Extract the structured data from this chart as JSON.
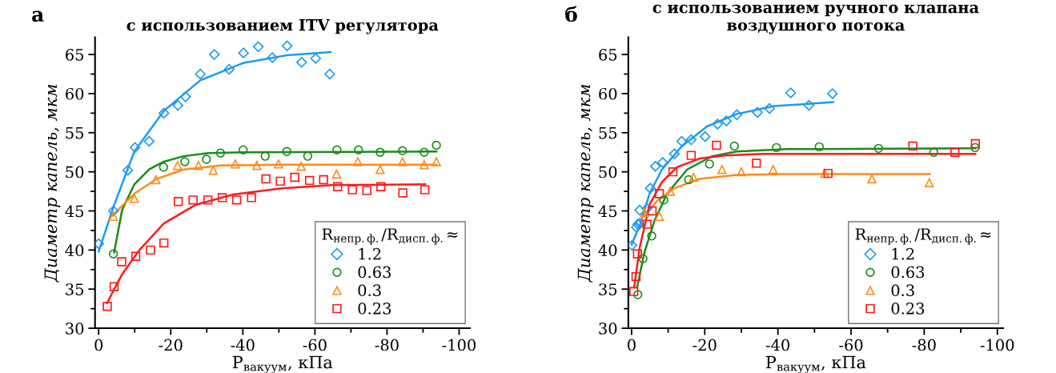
{
  "chart_data": [
    {
      "type": "scatter",
      "title": "с использованием ITV регулятора",
      "xlabel": "P$_{вакуум}$, кПа",
      "ylabel": "Диаметр капель, мкм",
      "legend_title": "R$_{непр.ф.}$/R$_{дисп.ф.}$≈",
      "annotations": [
        "а"
      ],
      "legend": "bottom right",
      "grid": false,
      "xlim": [
        1,
        -103
      ],
      "xticks": [
        0,
        {
          "value": -10,
          "label": null
        },
        -20,
        {
          "value": -30,
          "label": null
        },
        -40,
        {
          "value": -50,
          "label": null
        },
        -60,
        {
          "value": -70,
          "label": null
        },
        -80,
        {
          "value": -90,
          "label": null
        },
        -100
      ],
      "ylim": [
        30,
        67.2
      ],
      "yticks": [
        30,
        {
          "value": 32.5,
          "label": null
        },
        35,
        {
          "value": 37.5,
          "label": null
        },
        40,
        {
          "value": 42.5,
          "label": null
        },
        45,
        {
          "value": 47.5,
          "label": null
        },
        50,
        {
          "value": 52.5,
          "label": null
        },
        55,
        {
          "value": 57.5,
          "label": null
        },
        60,
        {
          "value": 62.5,
          "label": null
        },
        65
      ],
      "series": [
        {
          "name": "1.2",
          "marker": "diamond",
          "color": "#1e9bf0",
          "x": [
            0,
            -4.1,
            -8.1,
            -10.1,
            -14.0,
            -18.1,
            -22.0,
            -24.1,
            -28.2,
            -32.1,
            -36.2,
            -40.2,
            -44.3,
            -48.2,
            -52.3,
            -56.3,
            -60.2,
            -64.1
          ],
          "values": [
            40.8,
            45.0,
            50.2,
            53.1,
            53.9,
            57.5,
            58.5,
            59.6,
            62.5,
            65.0,
            63.1,
            65.2,
            66.0,
            64.6,
            66.1,
            64.0,
            64.5,
            62.5
          ]
        },
        {
          "name": "0.63",
          "marker": "circle",
          "color": "#1a8c1a",
          "x": [
            -4.1,
            -18.0,
            -23.9,
            -29.9,
            -33.8,
            -40.1,
            -46.2,
            -52.2,
            -58.0,
            -66.1,
            -72.1,
            -78.1,
            -84.3,
            -90.3,
            -93.7
          ],
          "values": [
            39.5,
            50.6,
            51.3,
            51.6,
            52.4,
            52.8,
            52.0,
            52.6,
            52.0,
            52.8,
            52.8,
            52.5,
            52.7,
            52.5,
            53.4
          ]
        },
        {
          "name": "0.3",
          "marker": "triangle",
          "color": "#ff8c1a",
          "x": [
            -4.1,
            -9.9,
            -15.9,
            -21.9,
            -27.7,
            -31.8,
            -37.9,
            -43.9,
            -49.9,
            -56.2,
            -66.0,
            -71.9,
            -78.1,
            -84.3,
            -90.3,
            -93.7
          ],
          "values": [
            44.3,
            46.6,
            49.0,
            50.8,
            50.8,
            50.2,
            51.0,
            50.8,
            51.0,
            50.7,
            49.7,
            51.3,
            50.3,
            51.3,
            50.9,
            51.3
          ]
        },
        {
          "name": "0.23",
          "marker": "square",
          "color": "#ff1a1a",
          "x": [
            -2.4,
            -4.3,
            -6.4,
            -10.3,
            -14.4,
            -18.1,
            -22.1,
            -26.2,
            -30.3,
            -34.3,
            -38.3,
            -42.4,
            -46.4,
            -50.4,
            -54.4,
            -58.5,
            -62.4,
            -66.3,
            -70.4,
            -74.4,
            -78.3,
            -84.4,
            -90.5
          ],
          "values": [
            32.8,
            35.3,
            38.5,
            39.2,
            40.0,
            40.9,
            46.2,
            46.4,
            46.4,
            46.7,
            46.4,
            46.7,
            49.1,
            48.8,
            49.3,
            48.9,
            49.0,
            48.1,
            47.7,
            47.6,
            48.1,
            47.3,
            47.7
          ]
        },
        {
          "type": "line",
          "color": "#1e9bf0",
          "x": [
            0,
            -4.1,
            -9.9,
            -18.1,
            -28.2,
            -40,
            -52.3,
            -64.3
          ],
          "values": [
            39.8,
            45.5,
            52.6,
            57.8,
            61.7,
            63.9,
            64.9,
            65.3
          ]
        },
        {
          "type": "line",
          "color": "#1a8c1a",
          "x": [
            -4.3,
            -6.5,
            -9.9,
            -14,
            -18.1,
            -23.6,
            -30.4,
            -40.7,
            -93.7
          ],
          "values": [
            39.7,
            45.1,
            48.4,
            50.3,
            51.3,
            52.0,
            52.4,
            52.5,
            52.6
          ]
        },
        {
          "type": "line",
          "color": "#ff8c1a",
          "x": [
            -3.8,
            -9.9,
            -16.1,
            -23.6,
            -33.8,
            -50.9,
            -93.7
          ],
          "values": [
            44.4,
            47.2,
            49.1,
            50.3,
            50.8,
            50.9,
            50.9
          ]
        },
        {
          "type": "line",
          "color": "#ff1a1a",
          "x": [
            -2.3,
            -6.5,
            -11.3,
            -18.1,
            -27,
            -37.3,
            -50.9,
            -64.6,
            -90.6
          ],
          "values": [
            33.2,
            36.9,
            40.0,
            43.4,
            45.8,
            47.1,
            47.9,
            48.3,
            48.4
          ]
        }
      ]
    },
    {
      "type": "scatter",
      "title": "с использованием ручного клапана\nвоздушного потока",
      "xlabel": "P$_{вакуум}$, кПа",
      "ylabel": "Диаметр капель, мкм",
      "legend_title": "R$_{непр.ф.}$/R$_{дисп.ф.}$≈",
      "annotations": [
        "б"
      ],
      "legend": "bottom right",
      "grid": false,
      "xlim": [
        0.9,
        -101.6
      ],
      "xticks": [
        0,
        {
          "value": -10,
          "label": null
        },
        -20,
        {
          "value": -30,
          "label": null
        },
        -40,
        {
          "value": -50,
          "label": null
        },
        -60,
        {
          "value": -70,
          "label": null
        },
        -80,
        {
          "value": -90,
          "label": null
        },
        -100
      ],
      "ylim": [
        30,
        67.2
      ],
      "yticks": [
        30,
        {
          "value": 32.5,
          "label": null
        },
        35,
        {
          "value": 37.5,
          "label": null
        },
        40,
        {
          "value": 42.5,
          "label": null
        },
        45,
        {
          "value": 47.5,
          "label": null
        },
        50,
        {
          "value": 52.5,
          "label": null
        },
        55,
        {
          "value": 57.5,
          "label": null
        },
        60,
        {
          "value": 62.5,
          "label": null
        },
        65
      ],
      "series": [
        {
          "name": "1.2",
          "marker": "diamond",
          "color": "#1e9bf0",
          "x": [
            -0.1,
            -1.3,
            -1.7,
            -2.2,
            -2.2,
            -4.2,
            -5.1,
            -6.5,
            -8.5,
            -11.7,
            -13.7,
            -16.3,
            -20.1,
            -23.5,
            -25.9,
            -28.8,
            -34.4,
            -37.7,
            -43.5,
            -48.5,
            -54.9
          ],
          "values": [
            40.6,
            42.9,
            43.3,
            43.4,
            45.1,
            45.3,
            47.9,
            50.7,
            51.2,
            52.3,
            53.9,
            54.1,
            54.5,
            56.1,
            56.5,
            57.3,
            57.6,
            58.1,
            60.1,
            58.5,
            60.0
          ]
        },
        {
          "name": "0.63",
          "marker": "circle",
          "color": "#1a8c1a",
          "x": [
            -1.7,
            -3.1,
            -5.5,
            -8.8,
            -15.6,
            -21.3,
            -28.1,
            -39.6,
            -51.3,
            -67.5,
            -82.6,
            -93.9
          ],
          "values": [
            34.3,
            38.9,
            41.8,
            46.4,
            49.0,
            51.0,
            53.3,
            53.1,
            53.2,
            53.0,
            52.5,
            53.1
          ]
        },
        {
          "name": "0.3",
          "marker": "triangle",
          "color": "#ff8c1a",
          "x": [
            -3.5,
            -7.6,
            -10.6,
            -16.9,
            -24.7,
            -30.0,
            -38.7,
            -52.8,
            -65.7,
            -81.4
          ],
          "values": [
            44.8,
            44.3,
            47.5,
            49.3,
            50.3,
            50.0,
            50.3,
            49.8,
            49.1,
            48.6
          ]
        },
        {
          "name": "0.23",
          "marker": "square",
          "color": "#ff1a1a",
          "x": [
            -0.6,
            -1.2,
            -1.6,
            -4.2,
            -5.6,
            -7.6,
            -11.3,
            -16.3,
            -23.2,
            -34.1,
            -53.7,
            -76.9,
            -88.4,
            -94.0
          ],
          "values": [
            34.7,
            36.6,
            39.5,
            43.3,
            45.0,
            47.2,
            50.0,
            52.1,
            53.4,
            51.1,
            49.8,
            53.3,
            52.5,
            53.6
          ]
        },
        {
          "type": "line",
          "color": "#1e9bf0",
          "x": [
            0,
            -2.2,
            -4.9,
            -8.3,
            -13.8,
            -20.6,
            -28.8,
            -39,
            -55.1
          ],
          "values": [
            40.7,
            43.1,
            47.2,
            50.3,
            53.3,
            55.8,
            57.4,
            58.4,
            58.9
          ]
        },
        {
          "type": "line",
          "color": "#1a8c1a",
          "x": [
            -1.5,
            -3.5,
            -6.3,
            -9.7,
            -15.2,
            -22,
            -28.8,
            -42.5,
            -94
          ],
          "values": [
            35.2,
            39.7,
            43.8,
            47.2,
            50.3,
            52.0,
            52.6,
            52.9,
            53.0
          ]
        },
        {
          "type": "line",
          "color": "#ff8c1a",
          "x": [
            -2.9,
            -7,
            -11.7,
            -18.6,
            -28.8,
            -42.5,
            -81.5
          ],
          "values": [
            44.1,
            46.3,
            47.9,
            49.1,
            49.6,
            49.7,
            49.7
          ]
        },
        {
          "type": "line",
          "color": "#ff1a1a",
          "x": [
            -0.7,
            -2.2,
            -4.9,
            -8.3,
            -12.4,
            -18.6,
            -25.4,
            -35.6,
            -94
          ],
          "values": [
            35.2,
            40.3,
            45.8,
            48.7,
            50.6,
            51.7,
            52.1,
            52.3,
            52.3
          ]
        }
      ]
    }
  ]
}
